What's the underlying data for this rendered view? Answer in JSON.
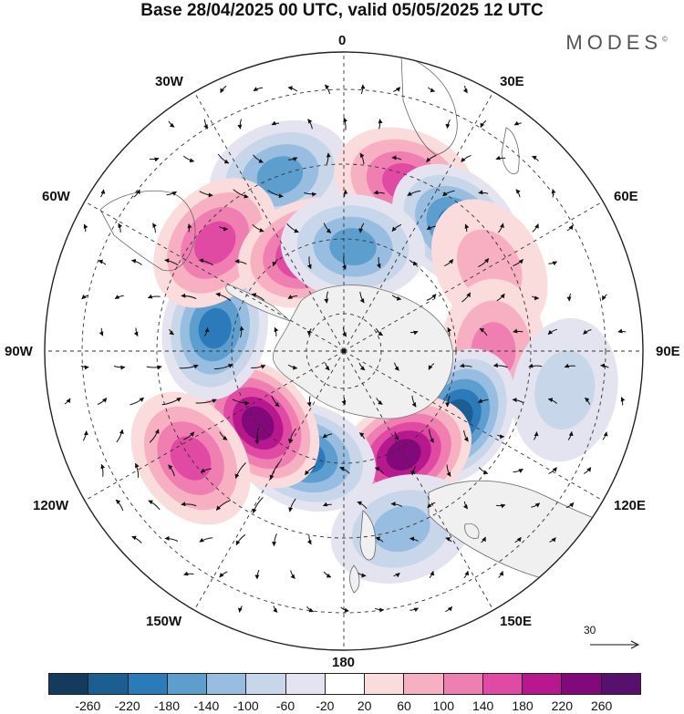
{
  "title": "Base 28/04/2025 00 UTC, valid 05/05/2025 12 UTC",
  "brand": "MODES",
  "brand_mark": "©",
  "longitude_labels": {
    "n0": "0",
    "e30": "30E",
    "e60": "60E",
    "e90": "90E",
    "e120": "120E",
    "e150": "150E",
    "s180": "180",
    "w150": "150W",
    "w120": "120W",
    "w90": "90W",
    "w60": "60W",
    "w30": "30W"
  },
  "wind_scale_label": "30",
  "colorbar": {
    "colors": [
      "#143a5e",
      "#1b5f92",
      "#2b7bba",
      "#5c9fcf",
      "#97bde0",
      "#c8d6ea",
      "#e4e4f1",
      "#ffffff",
      "#fbdcdc",
      "#f6b0c2",
      "#ef7fb1",
      "#e04aa3",
      "#b8188d",
      "#82097a",
      "#56116e"
    ],
    "tick_labels": [
      "-260",
      "-220",
      "-180",
      "-140",
      "-100",
      "-60",
      "-20",
      "20",
      "60",
      "100",
      "140",
      "180",
      "220",
      "260"
    ]
  },
  "anomaly_centers": [
    {
      "lon": -20,
      "lat": -40,
      "value": -150
    },
    {
      "lon": 20,
      "lat": -42,
      "value": 150
    },
    {
      "lon": 42,
      "lat": -45,
      "value": -180
    },
    {
      "lon": 60,
      "lat": -45,
      "value": 60
    },
    {
      "lon": 90,
      "lat": -50,
      "value": 110
    },
    {
      "lon": 120,
      "lat": -55,
      "value": -230
    },
    {
      "lon": 150,
      "lat": -58,
      "value": 240
    },
    {
      "lon": 162,
      "lat": -40,
      "value": -100
    },
    {
      "lon": -160,
      "lat": -60,
      "value": -200
    },
    {
      "lon": -130,
      "lat": -60,
      "value": 220
    },
    {
      "lon": -125,
      "lat": -40,
      "value": 140
    },
    {
      "lon": -80,
      "lat": -55,
      "value": -190
    },
    {
      "lon": -50,
      "lat": -45,
      "value": 160
    },
    {
      "lon": -20,
      "lat": -62,
      "value": 200
    },
    {
      "lon": 5,
      "lat": -62,
      "value": -170
    },
    {
      "lon": 100,
      "lat": -30,
      "value": -60
    }
  ]
}
